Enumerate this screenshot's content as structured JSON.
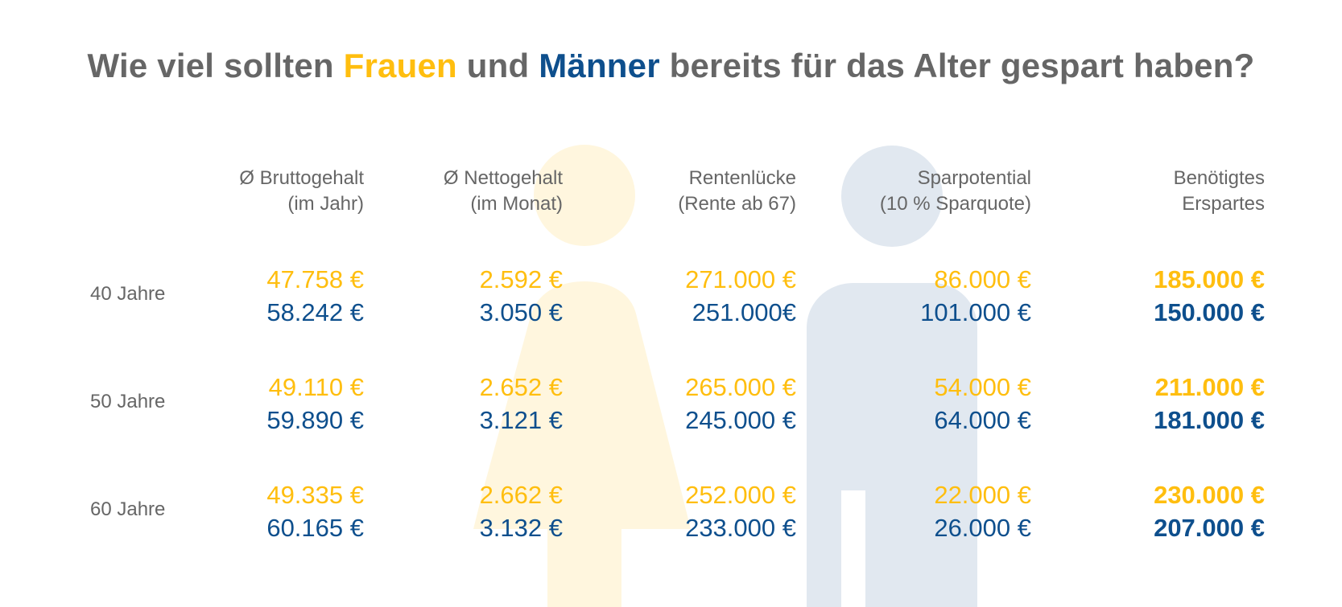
{
  "title": {
    "part1": "Wie viel sollten ",
    "women": "Frauen",
    "part2": " und ",
    "men": "Männer",
    "part3": " bereits für das Alter gespart haben?"
  },
  "colors": {
    "women": "#FFBE0F",
    "men": "#0E4F8D",
    "text": "#666666",
    "women_bg": "#FFF6DE",
    "men_bg": "#E1E8F0"
  },
  "icons": [
    "woman-silhouette-icon",
    "man-silhouette-icon"
  ],
  "headers": [
    {
      "line1": "Ø Bruttogehalt",
      "line2": "(im Jahr)"
    },
    {
      "line1": "Ø Nettogehalt",
      "line2": "(im Monat)"
    },
    {
      "line1": "Rentenlücke",
      "line2": "(Rente ab 67)"
    },
    {
      "line1": "Sparpotential",
      "line2": "(10 % Sparquote)"
    },
    {
      "line1": "Benötigtes",
      "line2": "Erspartes"
    }
  ],
  "rows": [
    {
      "label": "40 Jahre",
      "cells": [
        {
          "women": "47.758 €",
          "men": "58.242 €"
        },
        {
          "women": "2.592 €",
          "men": "3.050 €"
        },
        {
          "women": "271.000 €",
          "men": "251.000€"
        },
        {
          "women": "86.000 €",
          "men": "101.000 €"
        },
        {
          "women": "185.000 €",
          "men": "150.000 €"
        }
      ]
    },
    {
      "label": "50 Jahre",
      "cells": [
        {
          "women": "49.110 €",
          "men": "59.890 €"
        },
        {
          "women": "2.652 €",
          "men": "3.121 €"
        },
        {
          "women": "265.000 €",
          "men": "245.000 €"
        },
        {
          "women": "54.000 €",
          "men": "64.000 €"
        },
        {
          "women": "211.000 €",
          "men": "181.000 €"
        }
      ]
    },
    {
      "label": "60 Jahre",
      "cells": [
        {
          "women": "49.335 €",
          "men": "60.165 €"
        },
        {
          "women": "2.662 €",
          "men": "3.132 €"
        },
        {
          "women": "252.000 €",
          "men": "233.000 €"
        },
        {
          "women": "22.000 €",
          "men": "26.000 €"
        },
        {
          "women": "230.000 €",
          "men": "207.000 €"
        }
      ]
    }
  ]
}
